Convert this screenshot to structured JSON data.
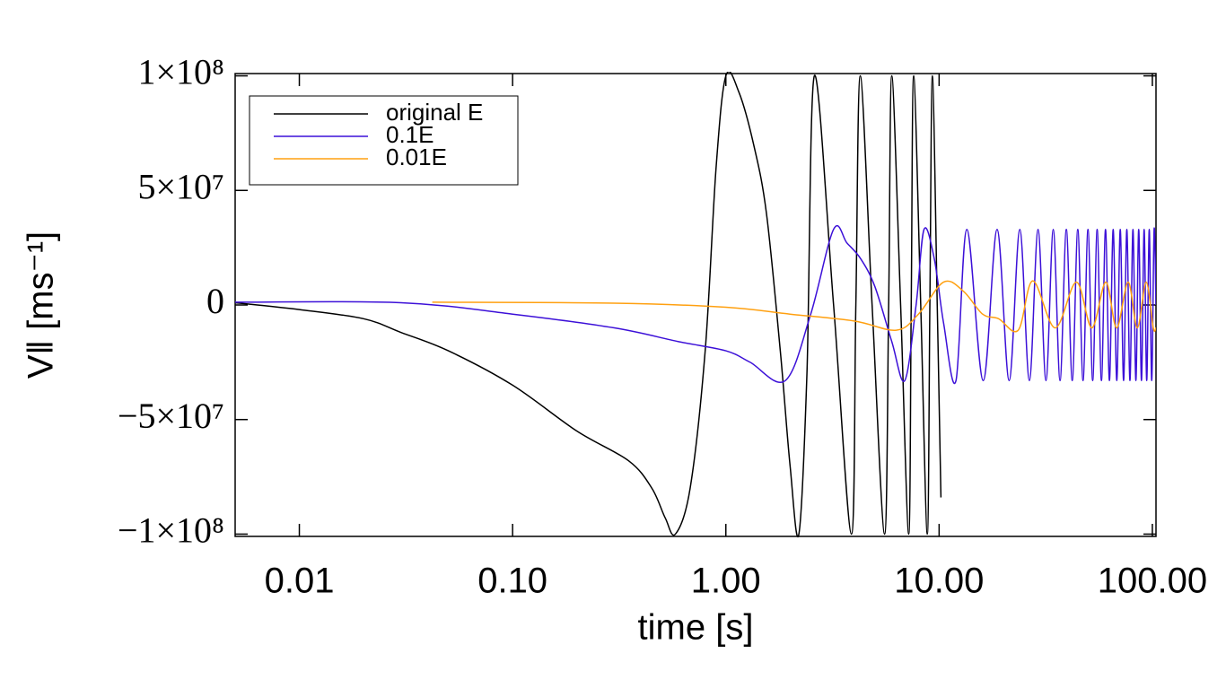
{
  "chart_data": {
    "type": "line",
    "xlabel": "time [s]",
    "ylabel": "V‖ [ms⁻¹]",
    "log_x": true,
    "grid": false,
    "legend": "upper left",
    "xlim": [
      0.005,
      104
    ],
    "ylim": [
      -101000000,
      101000000
    ],
    "xticks": [
      {
        "value": 0.01,
        "label": "0.01"
      },
      {
        "value": 0.1,
        "label": "0.10"
      },
      {
        "value": 1,
        "label": "1.00"
      },
      {
        "value": 10,
        "label": "10.00"
      },
      {
        "value": 100,
        "label": "100.00"
      }
    ],
    "yticks": [
      {
        "value": -100000000,
        "label": "−1×10⁸"
      },
      {
        "value": -50000000,
        "label": "−5×10⁷"
      },
      0,
      {
        "value": 50000000,
        "label": "5×10⁷"
      },
      {
        "value": 100000000,
        "label": "1×10⁸"
      }
    ],
    "series": [
      {
        "name": "original E",
        "color": "#000000",
        "x": [
          0.005,
          0.01,
          0.02,
          0.03,
          0.05,
          0.1,
          0.2,
          0.35,
          0.45,
          0.52,
          0.58,
          0.68,
          0.8,
          0.9,
          1.0,
          1.15,
          1.35,
          1.55,
          1.8,
          2.0,
          2.2,
          2.4,
          2.6,
          3.2,
          3.88,
          4.07,
          4.27,
          4.85,
          5.55,
          5.8,
          6.0,
          6.6,
          7.2,
          7.4,
          7.6,
          8.2,
          8.8,
          9.05,
          9.3,
          9.8,
          10.2
        ],
        "values": [
          1000000,
          -2000000,
          -6000000,
          -12000000,
          -20000000,
          -35000000,
          -55000000,
          -68000000,
          -80000000,
          -93000000,
          -100000000,
          -80000000,
          -20000000,
          60000000,
          100000000,
          93000000,
          70000000,
          40000000,
          -20000000,
          -70000000,
          -100000000,
          -30000000,
          100000000,
          0,
          -100000000,
          0,
          100000000,
          0,
          -100000000,
          0,
          100000000,
          0,
          -100000000,
          0,
          100000000,
          0,
          -100000000,
          0,
          100000000,
          0,
          -84000000
        ]
      },
      {
        "name": "0.1E",
        "color": "#3c10d8",
        "x": [
          0.005,
          0.03,
          0.1,
          0.3,
          0.6,
          1.0,
          1.3,
          1.9,
          2.5,
          3.2,
          3.7,
          4.3,
          5.0,
          6.0,
          6.9,
          7.8,
          8.5,
          9.5,
          10.5,
          12,
          13.5,
          16.1,
          18.7,
          21.3,
          23.9,
          26.5,
          29.1,
          31.7,
          34.3,
          36.9,
          39.5,
          42.1,
          44.7,
          47.3,
          49.9,
          52.5,
          55.1,
          57.7,
          60.3,
          62.9,
          65.5,
          68.1,
          70.7,
          73.3,
          75.9,
          78.5,
          81.1,
          83.7,
          86.3,
          88.9,
          91.5,
          94.1,
          96.7,
          99.3,
          101.9,
          104
        ],
        "values": [
          1200000,
          1000000,
          -4000000,
          -10000000,
          -16000000,
          -20000000,
          -25000000,
          -33000000,
          -4000000,
          33000000,
          27000000,
          20000000,
          8000000,
          -16000000,
          -33000000,
          0,
          33000000,
          20000000,
          -8000000,
          -33000000,
          33000000,
          -33000000,
          33000000,
          -33000000,
          33000000,
          -33000000,
          33000000,
          -33000000,
          33000000,
          -33000000,
          33000000,
          -33000000,
          33000000,
          -33000000,
          33000000,
          -33000000,
          33000000,
          -33000000,
          33000000,
          -33000000,
          33000000,
          -33000000,
          33000000,
          -33000000,
          33000000,
          -33000000,
          33000000,
          -33000000,
          33000000,
          -33000000,
          33000000,
          -33000000,
          33000000,
          -33000000,
          33000000,
          0
        ]
      },
      {
        "name": "0.01E",
        "color": "#ffa010",
        "x": [
          0.042,
          0.3,
          1.0,
          2.0,
          4.0,
          6.3,
          8.0,
          10.5,
          13,
          16,
          19,
          23.5,
          27.5,
          35,
          44,
          52,
          60.5,
          68,
          77,
          85,
          93.5,
          101,
          104
        ],
        "values": [
          1200000,
          800000,
          -1000000,
          -4000000,
          -7000000,
          -11000000,
          -4000000,
          10000000,
          6000000,
          -4000000,
          -6000000,
          -11000000,
          10500000,
          -10000000,
          10000000,
          -10000000,
          10000000,
          -10000000,
          10000000,
          -10000000,
          10000000,
          -10000000,
          -10000000
        ]
      }
    ]
  }
}
